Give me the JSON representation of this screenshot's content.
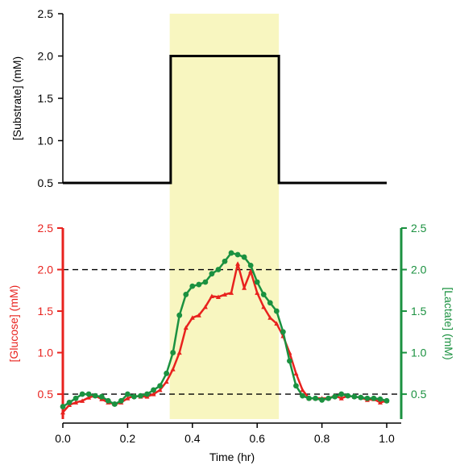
{
  "colors": {
    "glucose": "#e8221e",
    "lactate": "#1b9140",
    "highlight": "#f8f6c0",
    "black": "#000000"
  },
  "chart_data": [
    {
      "type": "line",
      "title": "",
      "xlabel": "",
      "ylabel": "[Substrate] (mM)",
      "xlim": [
        0,
        1.0
      ],
      "ylim": [
        0.5,
        2.5
      ],
      "yticks": [
        "0.5",
        "1.0",
        "1.5",
        "2.0",
        "2.5"
      ],
      "highlight_x": [
        0.33,
        0.667
      ],
      "series": [
        {
          "name": "",
          "x": [
            0.0,
            0.333,
            0.333,
            0.667,
            0.667,
            1.0
          ],
          "y": [
            0.5,
            0.5,
            2.0,
            2.0,
            0.5,
            0.5
          ]
        }
      ]
    },
    {
      "type": "line",
      "title": "",
      "xlabel": "Time (hr)",
      "ylabel": "[Glucose] (mM)",
      "y2label": "[Lactate] (mM)",
      "xlim": [
        0.0,
        1.0
      ],
      "ylim": [
        0.2,
        2.5
      ],
      "y2lim": [
        0.2,
        2.5
      ],
      "xticks": [
        "0.0",
        "0.2",
        "0.4",
        "0.6",
        "0.8",
        "1.0"
      ],
      "yticks": [
        "0.5",
        "1.0",
        "1.5",
        "2.0",
        "2.5"
      ],
      "y2ticks": [
        "0.5",
        "1.0",
        "1.5",
        "2.0",
        "2.5"
      ],
      "reference_lines": [
        2.0,
        0.5
      ],
      "highlight_x": [
        0.33,
        0.667
      ],
      "series": [
        {
          "name": "[Glucose] (mM)",
          "axis": "left",
          "x": [
            0.0,
            0.02,
            0.04,
            0.06,
            0.08,
            0.1,
            0.12,
            0.14,
            0.16,
            0.18,
            0.2,
            0.22,
            0.24,
            0.26,
            0.28,
            0.3,
            0.32,
            0.34,
            0.36,
            0.38,
            0.4,
            0.42,
            0.44,
            0.46,
            0.48,
            0.5,
            0.52,
            0.54,
            0.56,
            0.58,
            0.6,
            0.62,
            0.64,
            0.66,
            0.68,
            0.7,
            0.72,
            0.74,
            0.76,
            0.78,
            0.8,
            0.82,
            0.84,
            0.86,
            0.88,
            0.9,
            0.92,
            0.94,
            0.96,
            0.98,
            1.0
          ],
          "y": [
            0.28,
            0.37,
            0.4,
            0.42,
            0.46,
            0.48,
            0.44,
            0.4,
            0.38,
            0.4,
            0.45,
            0.48,
            0.47,
            0.47,
            0.5,
            0.55,
            0.65,
            0.8,
            1.0,
            1.3,
            1.42,
            1.45,
            1.55,
            1.68,
            1.67,
            1.7,
            1.72,
            2.07,
            1.78,
            1.98,
            1.72,
            1.55,
            1.42,
            1.35,
            1.2,
            1.0,
            0.75,
            0.55,
            0.45,
            0.45,
            0.45,
            0.45,
            0.48,
            0.45,
            0.48,
            0.47,
            0.46,
            0.43,
            0.44,
            0.4,
            0.42
          ]
        },
        {
          "name": "[Lactate] (mM)",
          "axis": "right",
          "x": [
            0.0,
            0.02,
            0.04,
            0.06,
            0.08,
            0.1,
            0.12,
            0.14,
            0.16,
            0.18,
            0.2,
            0.22,
            0.24,
            0.26,
            0.28,
            0.3,
            0.32,
            0.34,
            0.36,
            0.38,
            0.4,
            0.42,
            0.44,
            0.46,
            0.48,
            0.5,
            0.52,
            0.54,
            0.56,
            0.58,
            0.6,
            0.62,
            0.64,
            0.66,
            0.68,
            0.7,
            0.72,
            0.74,
            0.76,
            0.78,
            0.8,
            0.82,
            0.84,
            0.86,
            0.88,
            0.9,
            0.92,
            0.94,
            0.96,
            0.98,
            1.0
          ],
          "y": [
            0.35,
            0.4,
            0.45,
            0.5,
            0.5,
            0.48,
            0.47,
            0.42,
            0.38,
            0.42,
            0.5,
            0.47,
            0.48,
            0.5,
            0.55,
            0.6,
            0.75,
            1.0,
            1.45,
            1.7,
            1.8,
            1.82,
            1.85,
            1.95,
            2.0,
            2.1,
            2.2,
            2.18,
            2.15,
            2.05,
            1.85,
            1.7,
            1.6,
            1.5,
            1.25,
            0.9,
            0.6,
            0.48,
            0.45,
            0.45,
            0.43,
            0.45,
            0.47,
            0.5,
            0.48,
            0.47,
            0.46,
            0.45,
            0.45,
            0.44,
            0.42
          ]
        }
      ]
    }
  ]
}
